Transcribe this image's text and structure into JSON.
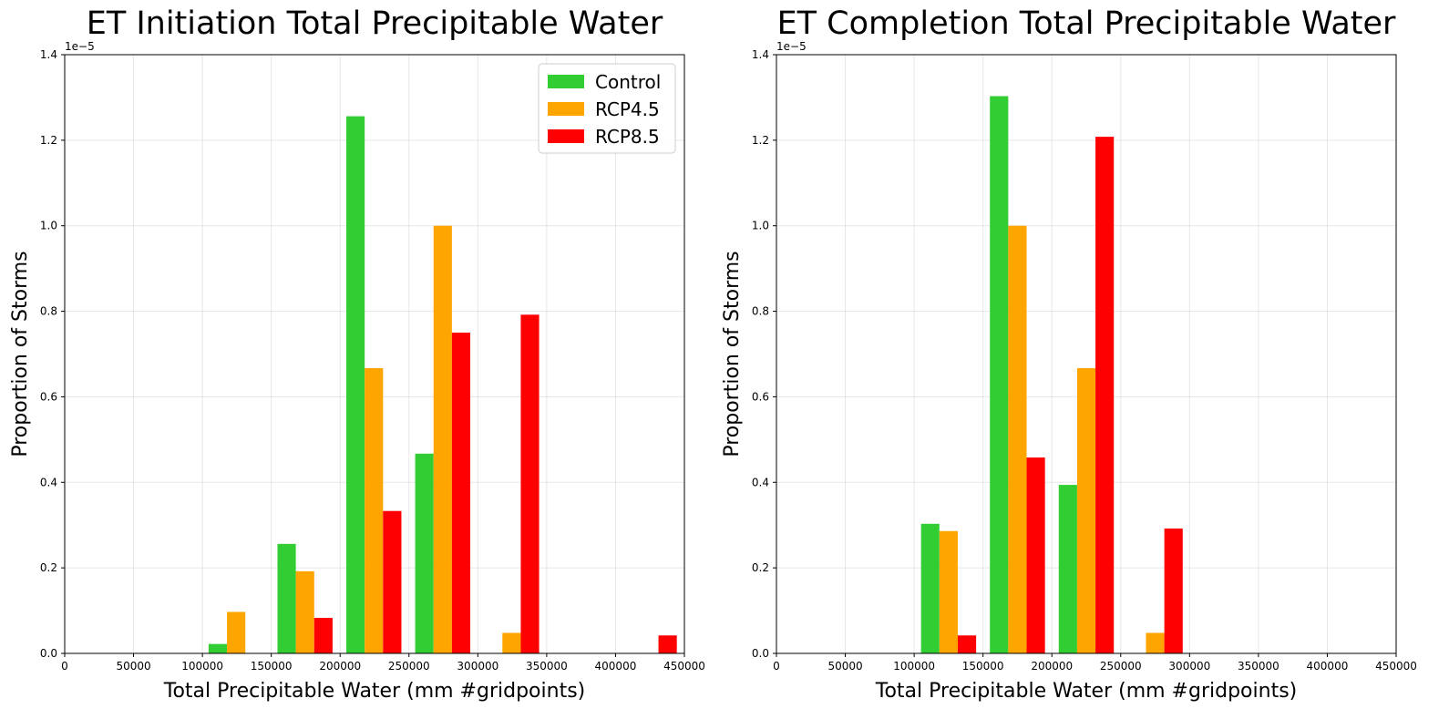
{
  "chart_data": [
    {
      "type": "bar",
      "title": "ET Initiation Total Precipitable Water",
      "xlabel": "Total Precipitable Water (mm #gridpoints)",
      "ylabel": "Proportion of Storms",
      "y_offset_label": "1e−5",
      "xlim": [
        0,
        450000
      ],
      "ylim": [
        0,
        1.4
      ],
      "x_ticks": [
        "0",
        "50000",
        "100000",
        "150000",
        "200000",
        "250000",
        "300000",
        "350000",
        "400000",
        "450000"
      ],
      "y_ticks": [
        "0.0",
        "0.2",
        "0.4",
        "0.6",
        "0.8",
        "1.0",
        "1.2",
        "1.4"
      ],
      "grid": true,
      "legend": {
        "position": "top-right",
        "entries": [
          "Control",
          "RCP4.5",
          "RCP8.5"
        ]
      },
      "bin_starts": [
        104500,
        154500,
        204500,
        254500,
        304500,
        354500,
        404500
      ],
      "bin_width": 40000,
      "series": [
        {
          "name": "Control",
          "color": "#32cd32",
          "values": [
            0.022,
            0.256,
            1.256,
            0.467,
            0,
            0,
            0
          ]
        },
        {
          "name": "RCP4.5",
          "color": "#ffa500",
          "values": [
            0.097,
            0.192,
            0.667,
            1.0,
            0.048,
            0,
            0
          ]
        },
        {
          "name": "RCP8.5",
          "color": "#ff0000",
          "values": [
            0,
            0.083,
            0.333,
            0.75,
            0.792,
            0,
            0.042
          ]
        }
      ]
    },
    {
      "type": "bar",
      "title": "ET Completion Total Precipitable Water",
      "xlabel": "Total Precipitable Water (mm #gridpoints)",
      "ylabel": "Proportion of Storms",
      "y_offset_label": "1e−5",
      "xlim": [
        0,
        450000
      ],
      "ylim": [
        0,
        1.4
      ],
      "x_ticks": [
        "0",
        "50000",
        "100000",
        "150000",
        "200000",
        "250000",
        "300000",
        "350000",
        "400000",
        "450000"
      ],
      "y_ticks": [
        "0.0",
        "0.2",
        "0.4",
        "0.6",
        "0.8",
        "1.0",
        "1.2",
        "1.4"
      ],
      "grid": true,
      "bin_starts": [
        105000,
        155000,
        205000,
        255000
      ],
      "bin_width": 40000,
      "series": [
        {
          "name": "Control",
          "color": "#32cd32",
          "values": [
            0.303,
            1.303,
            0.394,
            0
          ]
        },
        {
          "name": "RCP4.5",
          "color": "#ffa500",
          "values": [
            0.286,
            1.0,
            0.667,
            0.048
          ]
        },
        {
          "name": "RCP8.5",
          "color": "#ff0000",
          "values": [
            0.042,
            0.458,
            1.208,
            0.292
          ]
        }
      ]
    }
  ]
}
